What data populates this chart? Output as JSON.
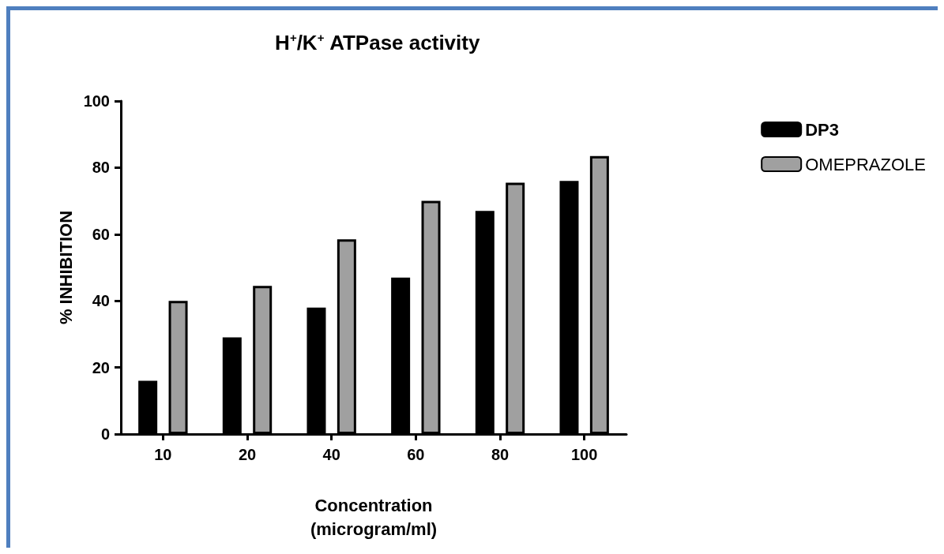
{
  "chart_data": {
    "type": "bar",
    "title": "H$^{+}$/K$^{+}$ ATPase activity",
    "xlabel": "Concentration\n(microgram/ml)",
    "ylabel": "% INHIBITION",
    "categories": [
      "10",
      "20",
      "40",
      "60",
      "80",
      "100"
    ],
    "series": [
      {
        "name": "DP3",
        "color": "#000000",
        "values": [
          16,
          29,
          38,
          47,
          67,
          76
        ]
      },
      {
        "name": "OMEPRAZOLE",
        "color": "#a0a0a0",
        "values": [
          40,
          44.5,
          58.5,
          70,
          75.5,
          83.5
        ]
      }
    ],
    "ylim": [
      0,
      100
    ],
    "yticks": [
      0,
      20,
      40,
      60,
      80,
      100
    ],
    "grid": false,
    "legend": "top right"
  }
}
